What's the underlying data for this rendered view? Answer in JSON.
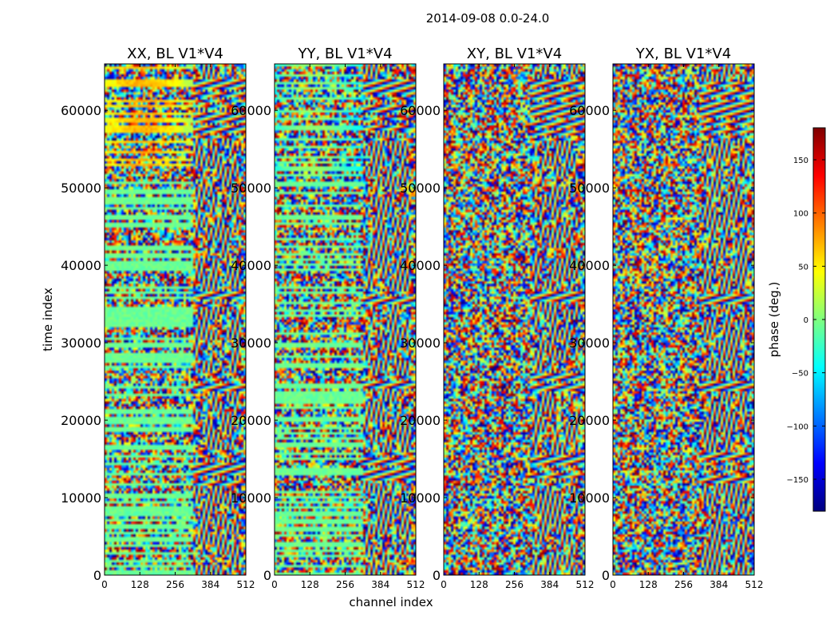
{
  "figure": {
    "suptitle": "2014-09-08 0.0-24.0",
    "xlabel": "channel index",
    "ylabel": "time index"
  },
  "colorbar": {
    "label": "phase (deg.)",
    "range": [
      -180,
      180
    ],
    "ticks": [
      -150,
      -100,
      -50,
      0,
      50,
      100,
      150
    ],
    "tick_labels": [
      "−150",
      "−100",
      "−50",
      "0",
      "50",
      "100",
      "150"
    ],
    "colormap": [
      "#00007f",
      "#0000ff",
      "#007fff",
      "#00ffff",
      "#7fff7f",
      "#ffff00",
      "#ff7f00",
      "#ff0000",
      "#7f0000"
    ]
  },
  "chart_data": [
    {
      "type": "heatmap",
      "title": "XX, BL V1*V4",
      "xlabel": "channel index",
      "ylabel": "time index",
      "xlim": [
        0,
        512
      ],
      "ylim": [
        0,
        66000
      ],
      "x_ticks": [
        0,
        128,
        256,
        384,
        512
      ],
      "y_ticks": [
        0,
        10000,
        20000,
        30000,
        40000,
        50000,
        60000
      ],
      "value": "phase (deg.)"
    },
    {
      "type": "heatmap",
      "title": "YY, BL V1*V4",
      "xlabel": "channel index",
      "ylabel": "time index",
      "xlim": [
        0,
        512
      ],
      "ylim": [
        0,
        66000
      ],
      "x_ticks": [
        0,
        128,
        256,
        384,
        512
      ],
      "y_ticks": [
        0,
        10000,
        20000,
        30000,
        40000,
        50000,
        60000
      ],
      "value": "phase (deg.)"
    },
    {
      "type": "heatmap",
      "title": "XY, BL V1*V4",
      "xlabel": "channel index",
      "ylabel": "time index",
      "xlim": [
        0,
        512
      ],
      "ylim": [
        0,
        66000
      ],
      "x_ticks": [
        0,
        128,
        256,
        384,
        512
      ],
      "y_ticks": [
        0,
        10000,
        20000,
        30000,
        40000,
        50000,
        60000
      ],
      "value": "phase (deg.)"
    },
    {
      "type": "heatmap",
      "title": "YX, BL V1*V4",
      "xlabel": "channel index",
      "ylabel": "time index",
      "xlim": [
        0,
        512
      ],
      "ylim": [
        0,
        66000
      ],
      "x_ticks": [
        0,
        128,
        256,
        384,
        512
      ],
      "y_ticks": [
        0,
        10000,
        20000,
        30000,
        40000,
        50000,
        60000
      ],
      "value": "phase (deg.)"
    }
  ]
}
